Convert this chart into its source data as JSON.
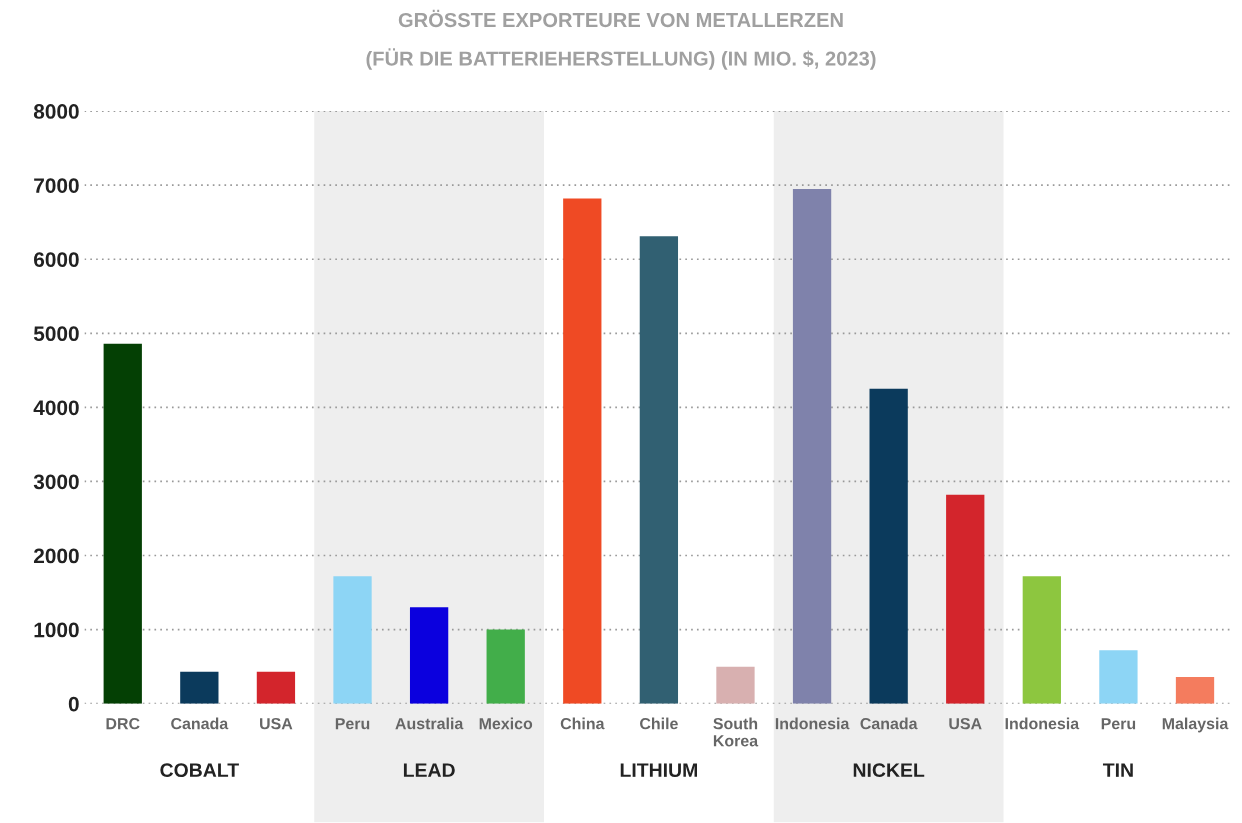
{
  "chart_data": {
    "type": "bar",
    "title": "GRÖSSTE EXPORTEURE VON METALLERZEN\n(FÜR DIE BATTERIEHERSTELLUNG) (IN MIO. $, 2023)",
    "categories": [
      "DRC",
      "Canada",
      "USA",
      "Peru",
      "Australia",
      "Mexico",
      "China",
      "Chile",
      "South\nKorea",
      "Indonesia",
      "Canada",
      "USA",
      "Indonesia",
      "Peru",
      "Malaysia"
    ],
    "values": [
      4860,
      430,
      430,
      1720,
      1300,
      1000,
      6820,
      6310,
      500,
      6950,
      4250,
      2820,
      1720,
      720,
      360
    ],
    "colors": [
      "#044004",
      "#0b3a5c",
      "#d3252c",
      "#8dd5f5",
      "#0b00de",
      "#42ae4a",
      "#ef4a24",
      "#316072",
      "#d8b0b0",
      "#7f82ab",
      "#0b3a5c",
      "#d3252c",
      "#8dc63f",
      "#8dd5f5",
      "#f47c5e"
    ],
    "ylim": [
      0,
      8000
    ],
    "yticks": [
      0,
      1000,
      2000,
      3000,
      4000,
      5000,
      6000,
      7000,
      8000
    ],
    "grid": "y",
    "annotations": [
      "COBALT",
      "LEAD",
      "LITHIUM",
      "NICKEL",
      "TIN"
    ]
  }
}
